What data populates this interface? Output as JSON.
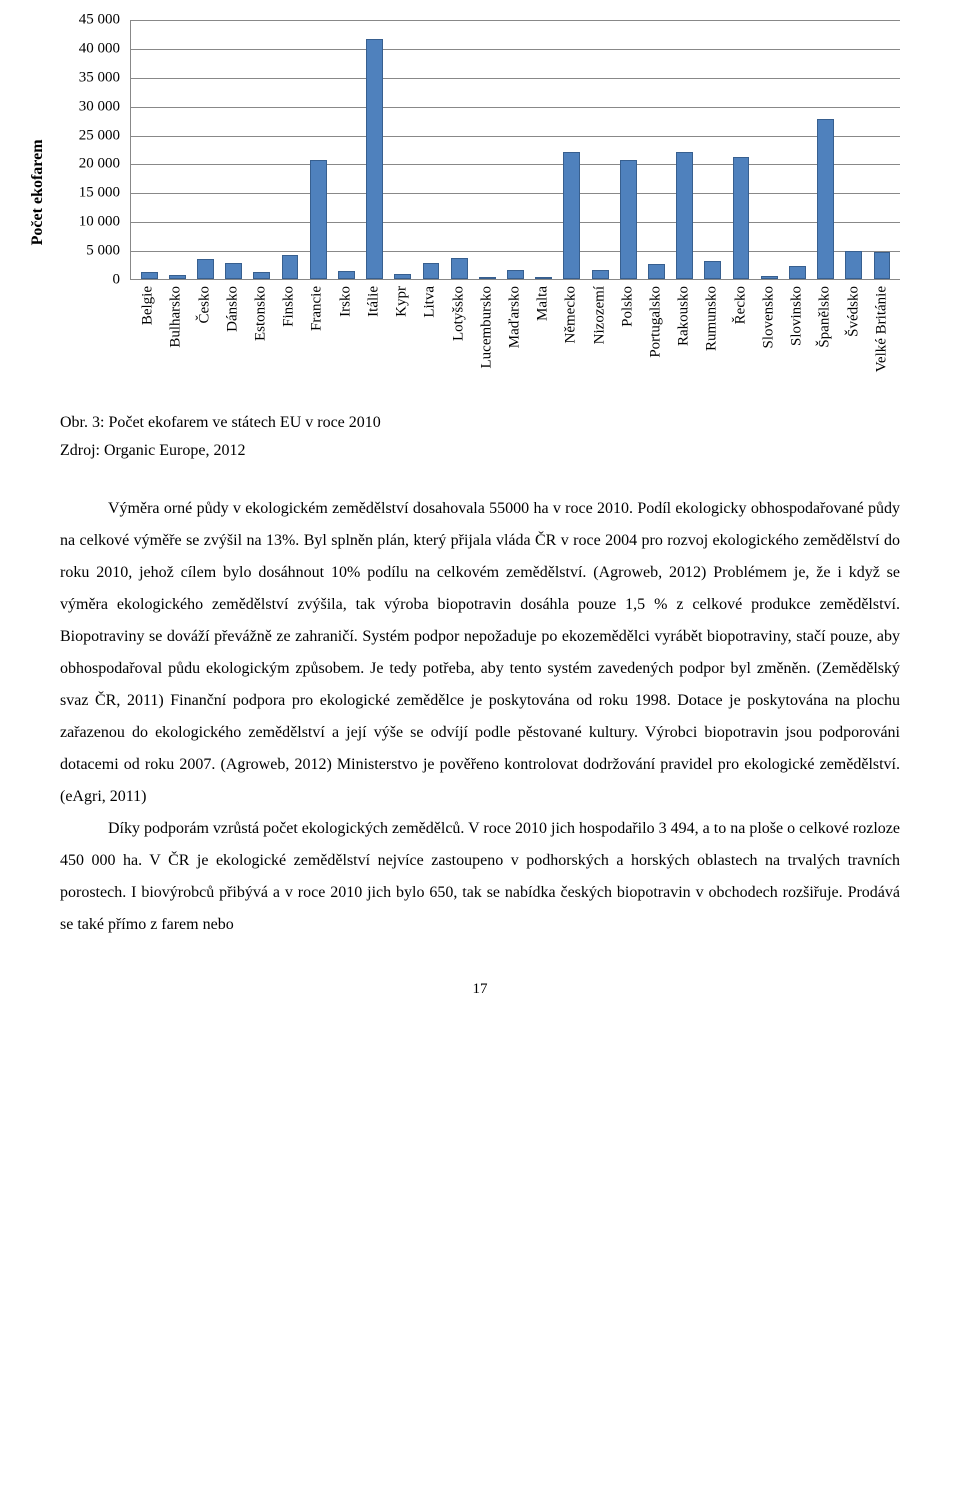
{
  "chart": {
    "type": "bar",
    "ylabel": "Počet ekofarem",
    "bar_color": "#4f81bd",
    "bar_border": "#375f8f",
    "grid_color": "#888888",
    "background": "#ffffff",
    "label_fontsize": 15,
    "ylabel_fontsize": 16,
    "ylim": [
      0,
      45000
    ],
    "ytick_step": 5000,
    "yticks": [
      "0",
      "5 000",
      "10 000",
      "15 000",
      "20 000",
      "25 000",
      "30 000",
      "35 000",
      "40 000",
      "45 000"
    ],
    "categories": [
      "Belgie",
      "Bulharsko",
      "Česko",
      "Dánsko",
      "Estonsko",
      "Finsko",
      "Francie",
      "Irsko",
      "Itálie",
      "Kypr",
      "Litva",
      "Lotyšsko",
      "Lucembursko",
      "Maďarsko",
      "Malta",
      "Německo",
      "Nizozemí",
      "Polsko",
      "Portugalsko",
      "Rakousko",
      "Rumunsko",
      "Řecko",
      "Slovensko",
      "Slovinsko",
      "Španělsko",
      "Švédsko",
      "Velké Británie"
    ],
    "values": [
      1200,
      700,
      3500,
      2700,
      1300,
      4200,
      20600,
      1400,
      41500,
      800,
      2700,
      3600,
      100,
      1600,
      20,
      21900,
      1500,
      20600,
      2600,
      21900,
      3100,
      21200,
      500,
      2200,
      27700,
      4800,
      4700
    ]
  },
  "caption": "Obr. 3: Počet ekofarem ve státech EU v roce 2010",
  "source": "Zdroj: Organic Europe, 2012",
  "para1": "Výměra orné půdy v ekologickém zemědělství dosahovala 55000 ha v roce 2010. Podíl ekologicky obhospodařované půdy na celkové výměře se zvýšil na 13%. Byl splněn plán, který přijala vláda ČR v roce 2004 pro rozvoj ekologického zemědělství do roku 2010, jehož cílem bylo dosáhnout 10% podílu na celkovém zemědělství. (Agroweb, 2012) Problémem je, že i když se výměra ekologického zemědělství zvýšila, tak výroba biopotravin dosáhla pouze 1,5 % z celkové produkce zemědělství. Biopotraviny se dováží převážně ze zahraničí. Systém podpor nepožaduje po ekozemědělci vyrábět biopotraviny, stačí pouze, aby obhospodařoval půdu ekologickým způsobem. Je tedy potřeba, aby tento systém zavedených podpor byl změněn. (Zemědělský svaz ČR, 2011) Finanční podpora pro ekologické zemědělce je poskytována od roku 1998. Dotace je poskytována na plochu zařazenou do ekologického zemědělství a její výše se odvíjí podle pěstované kultury. Výrobci biopotravin jsou podporováni dotacemi od roku 2007. (Agroweb, 2012) Ministerstvo je pověřeno kontrolovat dodržování pravidel pro ekologické zemědělství. (eAgri, 2011)",
  "para2": "Díky podporám vzrůstá počet ekologických zemědělců. V roce 2010 jich hospodařilo 3 494, a to na ploše o celkové rozloze 450 000 ha. V ČR je ekologické zemědělství nejvíce zastoupeno v podhorských a horských oblastech na trvalých travních porostech.  I biovýrobců přibývá a v roce 2010 jich bylo 650, tak se nabídka českých biopotravin v obchodech rozšiřuje. Prodává se také přímo z farem nebo",
  "page_number": "17"
}
